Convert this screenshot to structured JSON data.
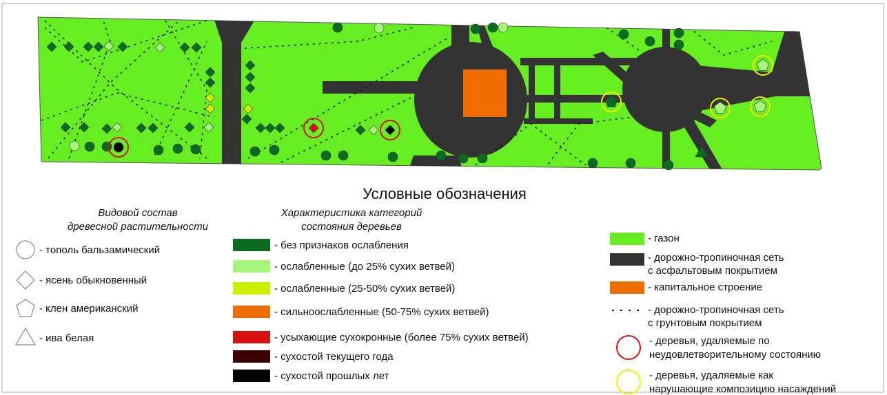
{
  "legend": {
    "title": "Условные обозначения",
    "species": {
      "heading": [
        "Видовой состав",
        "древесной растительности"
      ],
      "items": [
        "- тополь бальзамический",
        "- ясень обыкновенный",
        "- клен американский",
        "- ива белая"
      ]
    },
    "condition": {
      "heading": [
        "Характеристика категорий",
        "состояния деревьев"
      ],
      "items": [
        {
          "label": "- без признаков ослабления",
          "color": "#0b6b1e"
        },
        {
          "label": "- ослабленные (до 25% сухих ветвей)",
          "color": "#a8f57c"
        },
        {
          "label": "- ослабленные (25-50% сухих ветвей)",
          "color": "#ccf000"
        },
        {
          "label": "- сильноослабленные (50-75% сухих ветвей)",
          "color": "#f06e00"
        },
        {
          "label": "- усыхающие сухокронные (более 75% сухих ветвей)",
          "color": "#d81010"
        },
        {
          "label": "- сухостой текущего года",
          "color": "#3a0000"
        },
        {
          "label": "- сухостой прошлых лет",
          "color": "#000000"
        }
      ]
    },
    "land": {
      "items": [
        {
          "lines": [
            "- газон"
          ],
          "color": "#66ee22"
        },
        {
          "lines": [
            "- дорожно-тропиночная сеть",
            "с асфальтовым покрытием"
          ],
          "color": "#333333"
        },
        {
          "lines": [
            "- капитальное строение"
          ],
          "color": "#f06e00"
        },
        {
          "lines": [
            "- дорожно-тропиночная сеть",
            "с грунтовым покрытием"
          ],
          "color": "#111111"
        },
        {
          "lines": [
            "- деревья, удаляемые по",
            "неудовлетворительному состоянию"
          ],
          "color": "#d81010"
        },
        {
          "lines": [
            "- деревья, удаляемые как",
            "нарушающие композицию насаждений"
          ],
          "color": "#f0f000"
        }
      ]
    }
  }
}
